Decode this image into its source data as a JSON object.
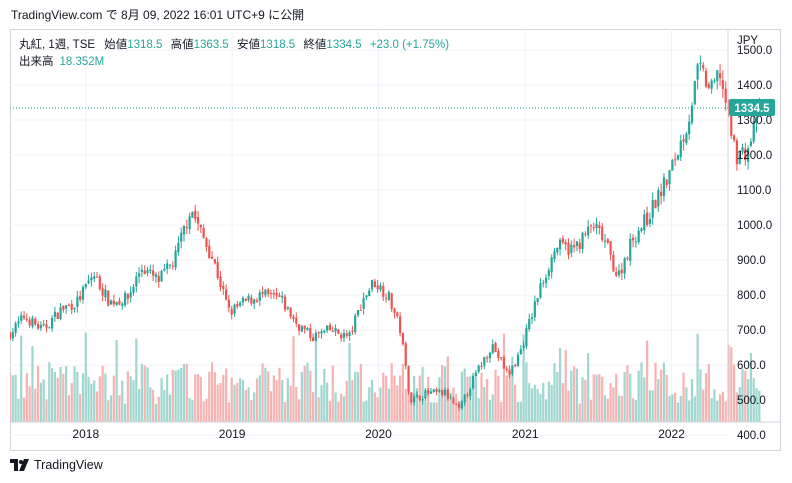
{
  "header": {
    "text": "TradingView.com で 8月 09, 2022 16:01 UTC+9 に公開"
  },
  "legend": {
    "symbol": "丸紅, 1週, TSE",
    "open_label": "始値",
    "open": "1318.5",
    "high_label": "高値",
    "high": "1363.5",
    "low_label": "安値",
    "low": "1318.5",
    "close_label": "終値",
    "close": "1334.5",
    "change": "+23.0 (+1.75%)",
    "volume_label": "出来高",
    "volume": "18.352M"
  },
  "footer": {
    "brand": "TradingView"
  },
  "colors": {
    "up": "#26a69a",
    "down": "#ef5350",
    "up_volume": "#9fd6cf",
    "down_volume": "#f6b3b1",
    "price_label_bg": "#26a69a"
  },
  "chart_data": {
    "type": "candlestick",
    "currency": "JPY",
    "y_ticks": [
      "1500.0",
      "1400.0",
      "1300.0",
      "1200.0",
      "1100.0",
      "1000.0",
      "900.0",
      "800.0",
      "700.0",
      "600.0",
      "500.0",
      "400.0"
    ],
    "ylim": [
      355,
      1560
    ],
    "x_ticks": [
      {
        "label": "2018",
        "date": "2018-01-01"
      },
      {
        "label": "2019",
        "date": "2019-01-01"
      },
      {
        "label": "2020",
        "date": "2020-01-01"
      },
      {
        "label": "2021",
        "date": "2021-01-01"
      },
      {
        "label": "2022",
        "date": "2022-01-01"
      }
    ],
    "xlim": [
      "2017-06-26",
      "2022-10-01"
    ],
    "last_price": "1334.5",
    "price_path": [
      [
        "2017-06-26",
        690
      ],
      [
        "2017-08-01",
        740
      ],
      [
        "2017-09-15",
        700
      ],
      [
        "2017-11-01",
        760
      ],
      [
        "2017-12-10",
        780
      ],
      [
        "2018-01-20",
        860
      ],
      [
        "2018-03-01",
        780
      ],
      [
        "2018-04-15",
        790
      ],
      [
        "2018-05-20",
        880
      ],
      [
        "2018-07-01",
        840
      ],
      [
        "2018-08-10",
        900
      ],
      [
        "2018-09-20",
        1050
      ],
      [
        "2018-10-15",
        980
      ],
      [
        "2018-11-15",
        900
      ],
      [
        "2018-12-25",
        750
      ],
      [
        "2019-02-01",
        780
      ],
      [
        "2019-03-15",
        800
      ],
      [
        "2019-05-01",
        790
      ],
      [
        "2019-06-10",
        720
      ],
      [
        "2019-07-20",
        680
      ],
      [
        "2019-09-01",
        700
      ],
      [
        "2019-10-20",
        680
      ],
      [
        "2019-11-20",
        780
      ],
      [
        "2019-12-20",
        840
      ],
      [
        "2020-01-25",
        800
      ],
      [
        "2020-02-25",
        700
      ],
      [
        "2020-03-20",
        500
      ],
      [
        "2020-05-01",
        520
      ],
      [
        "2020-06-15",
        520
      ],
      [
        "2020-07-20",
        470
      ],
      [
        "2020-08-20",
        550
      ],
      [
        "2020-10-10",
        660
      ],
      [
        "2020-11-20",
        570
      ],
      [
        "2020-12-20",
        640
      ],
      [
        "2021-02-10",
        830
      ],
      [
        "2021-03-20",
        940
      ],
      [
        "2021-05-01",
        930
      ],
      [
        "2021-06-20",
        1000
      ],
      [
        "2021-07-20",
        950
      ],
      [
        "2021-08-20",
        850
      ],
      [
        "2021-09-25",
        960
      ],
      [
        "2021-11-01",
        1020
      ],
      [
        "2021-12-25",
        1140
      ],
      [
        "2022-02-10",
        1290
      ],
      [
        "2022-03-10",
        1450
      ],
      [
        "2022-04-10",
        1380
      ],
      [
        "2022-05-01",
        1440
      ],
      [
        "2022-06-10",
        1200
      ],
      [
        "2022-07-10",
        1210
      ],
      [
        "2022-08-08",
        1334.5
      ]
    ]
  }
}
